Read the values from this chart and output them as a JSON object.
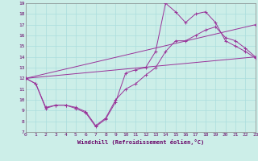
{
  "xlabel": "Windchill (Refroidissement éolien,°C)",
  "bg_color": "#cceee8",
  "grid_color": "#aadddd",
  "line_color": "#993399",
  "xmin": 0,
  "xmax": 23,
  "ymin": 7,
  "ymax": 19,
  "lines": [
    {
      "x": [
        0,
        1,
        2,
        3,
        4,
        5,
        6,
        7,
        8,
        9,
        10,
        11,
        12,
        13,
        14,
        15,
        16,
        17,
        18,
        19,
        20,
        21,
        22,
        23
      ],
      "y": [
        12,
        11.5,
        9.2,
        9.5,
        9.5,
        9.2,
        8.8,
        7.5,
        8.2,
        9.8,
        12.5,
        12.8,
        13.0,
        14.5,
        19.0,
        18.2,
        17.2,
        18.0,
        18.2,
        17.2,
        15.5,
        15.0,
        14.5,
        13.9
      ]
    },
    {
      "x": [
        0,
        1,
        2,
        3,
        4,
        5,
        6,
        7,
        8,
        9,
        10,
        11,
        12,
        13,
        14,
        15,
        16,
        17,
        18,
        19,
        20,
        21,
        22,
        23
      ],
      "y": [
        12,
        11.5,
        9.3,
        9.5,
        9.5,
        9.3,
        8.9,
        7.6,
        8.3,
        10.0,
        11.0,
        11.5,
        12.3,
        13.0,
        14.5,
        15.5,
        15.5,
        16.0,
        16.5,
        16.8,
        15.8,
        15.5,
        14.8,
        14.0
      ]
    },
    {
      "x": [
        0,
        23
      ],
      "y": [
        12,
        17.0
      ]
    },
    {
      "x": [
        0,
        23
      ],
      "y": [
        12,
        14.0
      ]
    }
  ]
}
